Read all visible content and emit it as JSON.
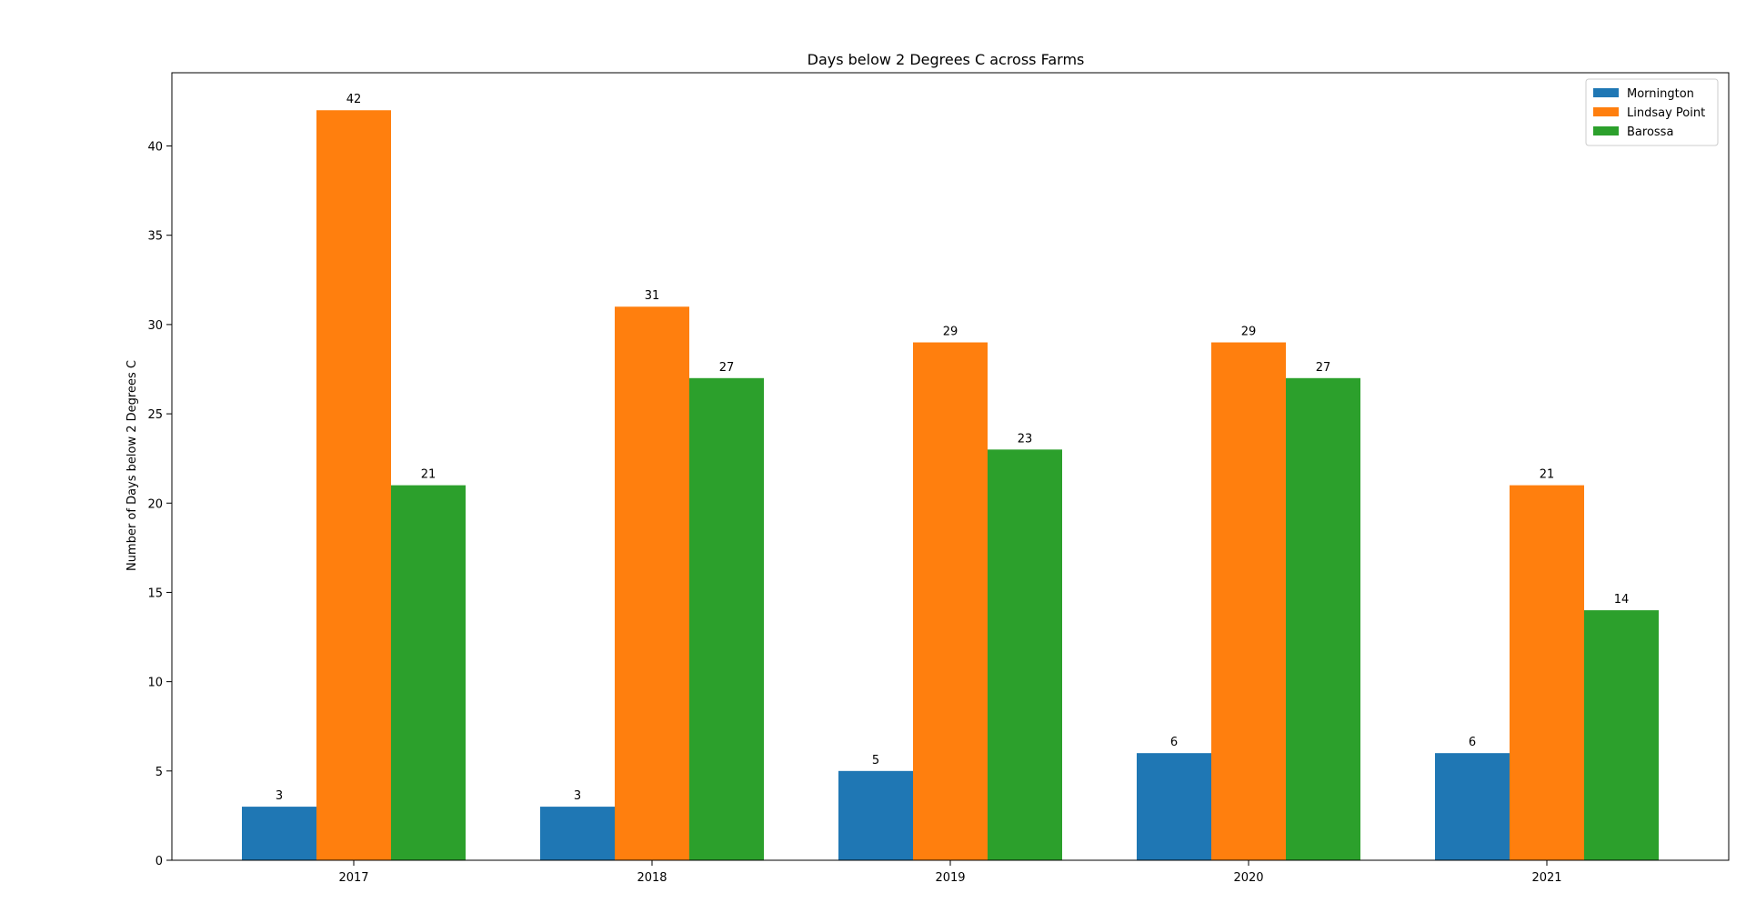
{
  "chart_data": {
    "type": "bar",
    "title": "Days below 2 Degrees C across Farms",
    "xlabel": "",
    "ylabel": "Number of Days below 2 Degrees C",
    "categories": [
      "2017",
      "2018",
      "2019",
      "2020",
      "2021"
    ],
    "series": [
      {
        "name": "Mornington",
        "color": "#1f77b4",
        "values": [
          3,
          3,
          5,
          6,
          6
        ]
      },
      {
        "name": "Lindsay Point",
        "color": "#ff7f0e",
        "values": [
          42,
          31,
          29,
          29,
          21
        ]
      },
      {
        "name": "Barossa",
        "color": "#2ca02c",
        "values": [
          21,
          27,
          23,
          27,
          14
        ]
      }
    ],
    "ylim": [
      0,
      44.1
    ],
    "yticks": [
      0,
      5,
      10,
      15,
      20,
      25,
      30,
      35,
      40
    ],
    "grid": false,
    "legend_position": "top-right"
  }
}
